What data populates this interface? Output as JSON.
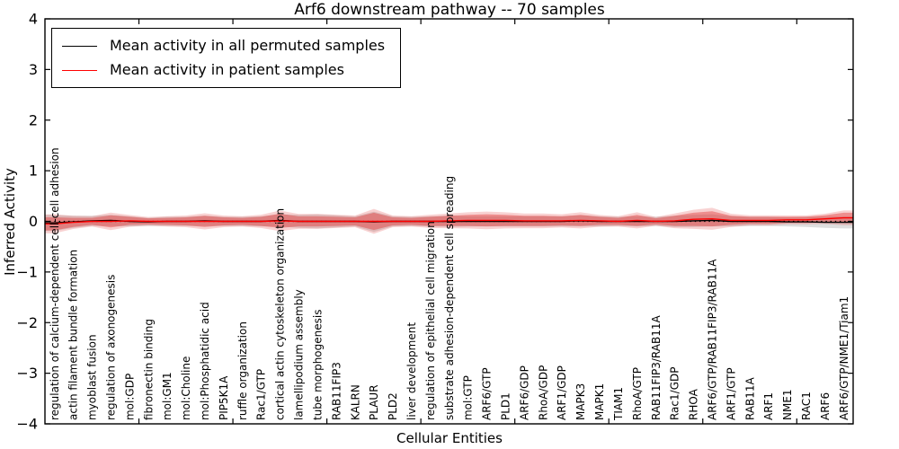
{
  "chart_data": {
    "type": "line",
    "title": "Arf6 downstream pathway -- 70 samples",
    "xlabel": "Cellular Entities",
    "ylabel": "Inferred Activity",
    "ylim": [
      -4,
      4
    ],
    "yticks": [
      4,
      3,
      2,
      1,
      0,
      -1,
      -2,
      -3,
      -4
    ],
    "ytick_labels": [
      "4",
      "3",
      "2",
      "1",
      "0",
      "−1",
      "−2",
      "−3",
      "−4"
    ],
    "grid": false,
    "legend_position": "upper left",
    "zero_reference_line": {
      "y": 0,
      "style": "dotted",
      "color": "#000000"
    },
    "categories": [
      "regulation of calcium-dependent cell-cell adhesion",
      "actin filament bundle formation",
      "myoblast fusion",
      "regulation of axonogenesis",
      "mol:GDP",
      "fibronectin binding",
      "mol:GM1",
      "mol:Choline",
      "mol:Phosphatidic acid",
      "PIP5K1A",
      "ruffle organization",
      "Rac1/GTP",
      "cortical actin cytoskeleton organization",
      "lamellipodium assembly",
      "tube morphogenesis",
      "RAB11FIP3",
      "KALRN",
      "PLAUR",
      "PLD2",
      "liver development",
      "regulation of epithelial cell migration",
      "substrate adhesion-dependent cell spreading",
      "mol:GTP",
      "ARF6/GTP",
      "PLD1",
      "ARF6/GDP",
      "RhoA/GDP",
      "ARF1/GDP",
      "MAPK3",
      "MAPK1",
      "TIAM1",
      "RhoA/GTP",
      "RAB11FIP3/RAB11A",
      "Rac1/GDP",
      "RHOA",
      "ARF6/GTP/RAB11FIP3/RAB11A",
      "ARF1/GTP",
      "RAB11A",
      "ARF1",
      "NME1",
      "RAC1",
      "ARF6",
      "ARF6/GTP/NME1/Tiam1"
    ],
    "series": [
      {
        "name": "Mean activity in all permuted samples",
        "color": "#000000",
        "band_color": "#999999",
        "means": [
          -0.03,
          -0.01,
          0.01,
          0.02,
          0,
          -0.01,
          0,
          0,
          0.01,
          0,
          0,
          0,
          0.02,
          0,
          0,
          0,
          0,
          -0.01,
          0,
          0,
          0,
          0,
          0,
          0,
          0,
          0,
          0,
          0,
          0.01,
          0,
          0,
          0,
          0,
          0,
          0.01,
          0.02,
          0,
          0,
          0,
          -0.01,
          -0.01,
          -0.02,
          -0.02
        ],
        "band_halfwidths": [
          0.16,
          0.12,
          0.1,
          0.11,
          0.1,
          0.08,
          0.09,
          0.09,
          0.1,
          0.09,
          0.09,
          0.1,
          0.12,
          0.13,
          0.14,
          0.12,
          0.1,
          0.2,
          0.1,
          0.09,
          0.1,
          0.11,
          0.1,
          0.1,
          0.1,
          0.1,
          0.1,
          0.1,
          0.11,
          0.1,
          0.09,
          0.1,
          0.09,
          0.11,
          0.12,
          0.12,
          0.1,
          0.09,
          0.09,
          0.09,
          0.1,
          0.11,
          0.12
        ]
      },
      {
        "name": "Mean activity in patient samples",
        "color": "#ff0000",
        "band_color": "#e03030",
        "means": [
          -0.05,
          -0.02,
          0,
          0,
          0.01,
          0,
          0,
          0,
          0,
          0,
          0,
          0,
          0.01,
          0,
          0,
          0,
          0,
          0,
          0,
          0,
          0,
          0.01,
          0.02,
          0.02,
          0.02,
          0.01,
          0.01,
          0.01,
          0.02,
          0.01,
          0,
          0.02,
          0,
          0.01,
          0.04,
          0.05,
          0.02,
          0.02,
          0.02,
          0.03,
          0.03,
          0.05,
          0.07
        ],
        "band_halfwidths": [
          0.13,
          0.09,
          0.07,
          0.12,
          0.08,
          0.06,
          0.07,
          0.08,
          0.11,
          0.08,
          0.07,
          0.09,
          0.14,
          0.1,
          0.1,
          0.09,
          0.08,
          0.17,
          0.08,
          0.07,
          0.09,
          0.1,
          0.11,
          0.12,
          0.11,
          0.1,
          0.1,
          0.09,
          0.11,
          0.08,
          0.07,
          0.11,
          0.06,
          0.1,
          0.13,
          0.15,
          0.09,
          0.07,
          0.07,
          0.06,
          0.06,
          0.07,
          0.1
        ]
      }
    ]
  }
}
